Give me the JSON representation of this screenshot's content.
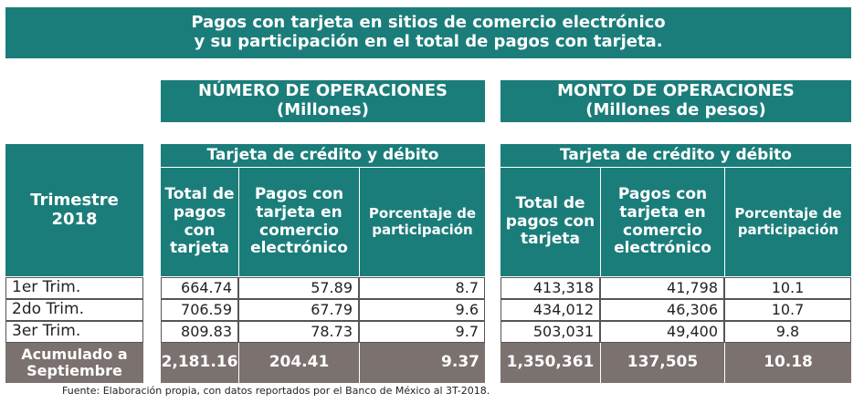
{
  "title": [
    "Pagos con tarjeta en sitios de comercio electrónico",
    "y su participación en el total de pagos con tarjeta."
  ],
  "row_header": "Trimestre 2018",
  "groups": [
    {
      "title": "NÚMERO DE OPERACIONES",
      "unit": "(Millones)",
      "subheader": "Tarjeta de crédito y débito",
      "columns": [
        "Total de pagos con tarjeta",
        "Pagos con tarjeta en comercio electrónico",
        "Porcentaje de participación"
      ]
    },
    {
      "title": "MONTO DE OPERACIONES",
      "unit": "(Millones de pesos)",
      "subheader": "Tarjeta de crédito y débito",
      "columns": [
        "Total de pagos con tarjeta",
        "Pagos con tarjeta en comercio electrónico",
        "Porcentaje de participación"
      ]
    }
  ],
  "rows": [
    {
      "label": "1er Trim.",
      "values": [
        "664.74",
        "57.89",
        "8.7",
        "413,318",
        "41,798",
        "10.1"
      ]
    },
    {
      "label": "2do Trim.",
      "values": [
        "706.59",
        "67.79",
        "9.6",
        "434,012",
        "46,306",
        "10.7"
      ]
    },
    {
      "label": "3er Trim.",
      "values": [
        "809.83",
        "78.73",
        "9.7",
        "503,031",
        "49,400",
        "9.8"
      ]
    }
  ],
  "total": {
    "label": "Acumulado a Septiembre",
    "values": [
      "2,181.16",
      "204.41",
      "9.37",
      "1,350,361",
      "137,505",
      "10.18"
    ]
  },
  "source": "Fuente: Elaboración propia, con datos reportados por el Banco de México al 3T-2018."
}
